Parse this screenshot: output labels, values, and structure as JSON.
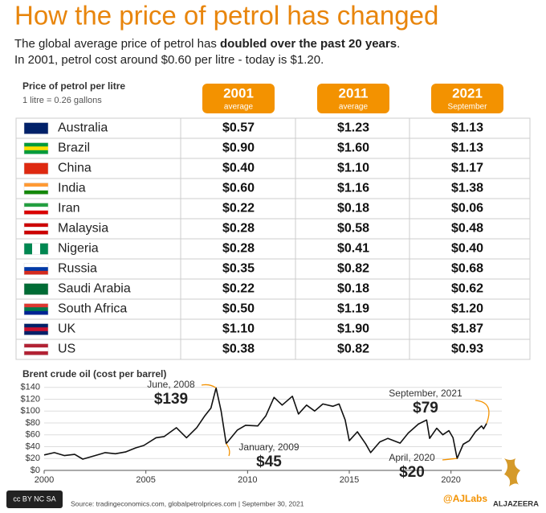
{
  "header": {
    "title": "How the price of petrol has changed",
    "subtitle_start": "The global average price of petrol has ",
    "subtitle_bold": "doubled over the past 20 years",
    "subtitle_end": ".",
    "subtitle_line2": "In 2001, petrol cost around $0.60 per litre - today is $1.20."
  },
  "table": {
    "caption": "Price of petrol per litre",
    "note": "1 litre = 0.26 gallons",
    "columns": [
      {
        "year": "2001",
        "sub": "average"
      },
      {
        "year": "2011",
        "sub": "average"
      },
      {
        "year": "2021",
        "sub": "September"
      }
    ],
    "rows": [
      [
        "Australia",
        "$0.57",
        "$1.23",
        "$1.13"
      ],
      [
        "Brazil",
        "$0.90",
        "$1.60",
        "$1.13"
      ],
      [
        "China",
        "$0.40",
        "$1.10",
        "$1.17"
      ],
      [
        "India",
        "$0.60",
        "$1.16",
        "$1.38"
      ],
      [
        "Iran",
        "$0.22",
        "$0.18",
        "$0.06"
      ],
      [
        "Malaysia",
        "$0.28",
        "$0.58",
        "$0.48"
      ],
      [
        "Nigeria",
        "$0.28",
        "$0.41",
        "$0.40"
      ],
      [
        "Russia",
        "$0.35",
        "$0.82",
        "$0.68"
      ],
      [
        "Saudi Arabia",
        "$0.22",
        "$0.18",
        "$0.62"
      ],
      [
        "South Africa",
        "$0.50",
        "$1.19",
        "$1.20"
      ],
      [
        "UK",
        "$1.10",
        "$1.90",
        "$1.87"
      ],
      [
        "US",
        "$0.38",
        "$0.82",
        "$0.93"
      ]
    ]
  },
  "chart_data": {
    "type": "line",
    "title": "Brent crude oil (cost per barrel)",
    "x": [
      2000,
      2000.5,
      2001,
      2001.5,
      2001.9,
      2002.5,
      2003,
      2003.5,
      2004,
      2004.5,
      2004.9,
      2005.5,
      2005.9,
      2006.5,
      2007,
      2007.5,
      2007.9,
      2008.2,
      2008.45,
      2008.7,
      2008.95,
      2009.5,
      2009.9,
      2010.5,
      2010.9,
      2011.3,
      2011.7,
      2012.2,
      2012.5,
      2012.9,
      2013.3,
      2013.7,
      2014.2,
      2014.5,
      2014.8,
      2015.0,
      2015.4,
      2015.8,
      2016.05,
      2016.5,
      2016.9,
      2017.5,
      2017.9,
      2018.4,
      2018.8,
      2018.95,
      2019.3,
      2019.6,
      2019.9,
      2020.1,
      2020.3,
      2020.6,
      2020.9,
      2021.2,
      2021.5,
      2021.6,
      2021.75
    ],
    "series": [
      {
        "name": "Brent crude oil",
        "color": "#111111",
        "values": [
          26,
          30,
          25,
          27,
          19,
          25,
          30,
          28,
          31,
          38,
          42,
          55,
          57,
          72,
          55,
          72,
          92,
          105,
          139,
          100,
          45,
          68,
          76,
          75,
          92,
          123,
          110,
          125,
          95,
          110,
          100,
          112,
          108,
          112,
          85,
          50,
          65,
          45,
          30,
          48,
          54,
          46,
          63,
          78,
          85,
          54,
          71,
          60,
          67,
          55,
          20,
          44,
          50,
          65,
          75,
          70,
          79
        ]
      }
    ],
    "xlim": [
      2000,
      2022.5
    ],
    "xticks": [
      2000,
      2005,
      2010,
      2015,
      2020
    ],
    "ylim": [
      0,
      145
    ],
    "yticks": [
      {
        "value": 0,
        "label": "$0"
      },
      {
        "value": 20,
        "label": "$20"
      },
      {
        "value": 40,
        "label": "$40"
      },
      {
        "value": 60,
        "label": "$60"
      },
      {
        "value": 80,
        "label": "$80"
      },
      {
        "value": 100,
        "label": "$100"
      },
      {
        "value": 120,
        "label": "$120"
      },
      {
        "value": 140,
        "label": "$140"
      }
    ],
    "grid": true,
    "accent": "#f39200",
    "annotations": [
      {
        "x": 2008.45,
        "y": 139,
        "date": "June, 2008",
        "label": "$139"
      },
      {
        "x": 2008.95,
        "y": 45,
        "date": "January, 2009",
        "label": "$45"
      },
      {
        "x": 2020.3,
        "y": 20,
        "date": "April, 2020",
        "label": "$20"
      },
      {
        "x": 2021.75,
        "y": 79,
        "date": "September, 2021",
        "label": "$79"
      }
    ]
  },
  "footer": {
    "license": "cc BY NC SA",
    "source": "Source: tradingeconomics.com, globalpetrolprices.com | September 30, 2021",
    "handle": "@AJLabs",
    "brand": "ALJAZEERA"
  }
}
